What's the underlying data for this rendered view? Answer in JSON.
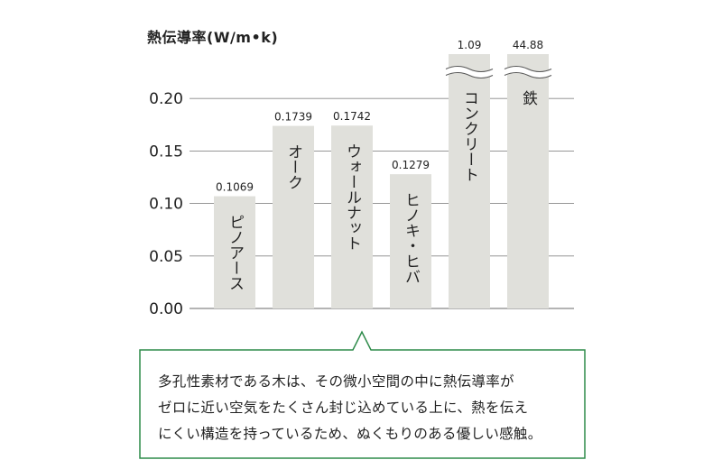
{
  "chart_data": {
    "type": "bar",
    "title": "熱伝導率(W/m•k)",
    "yticks": [
      "0.00",
      "0.05",
      "0.10",
      "0.15",
      "0.20"
    ],
    "ylim": [
      0,
      0.22
    ],
    "grid": true,
    "categories": [
      "ピノアース",
      "オーク",
      "ウォールナット",
      "ヒノキ・ヒバ",
      "コンクリート",
      "鉄"
    ],
    "values": [
      0.1069,
      0.1739,
      0.1742,
      0.1279,
      1.09,
      44.88
    ],
    "value_labels": [
      "0.1069",
      "0.1739",
      "0.1742",
      "0.1279",
      "1.09",
      "44.88"
    ],
    "axis_break_categories": [
      "コンクリート",
      "鉄"
    ]
  },
  "callout": {
    "lines": [
      "多孔性素材である木は、その微小空間の中に熱伝導率が",
      "ゼロに近い空気をたくさん封じ込めている上に、熱を伝え",
      "にくい構造を持っているため、ぬくもりのある優しい感触。"
    ]
  },
  "colors": {
    "bar": "#e0e0db",
    "grid": "#888888",
    "callout_border": "#2e8b4a",
    "text": "#222222"
  }
}
